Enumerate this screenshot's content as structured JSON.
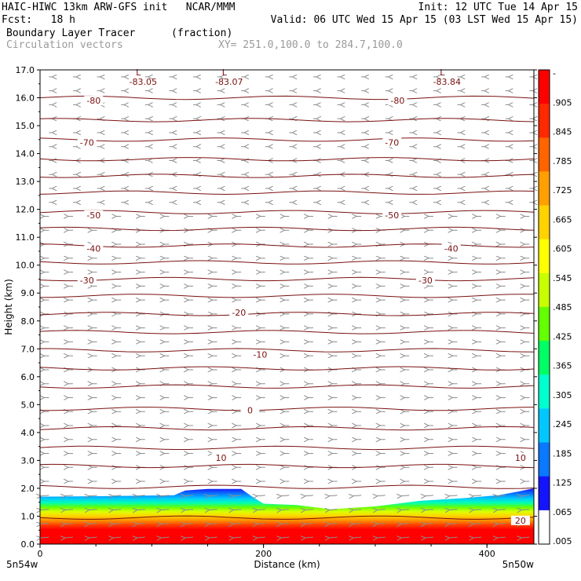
{
  "header": {
    "line1_left": "HAIC-HIWC 13km ARW-GFS init   NCAR/MMM",
    "line1_right": "Init: 12 UTC Tue 14 Apr 15",
    "line2_left": "Fcst:   18 h",
    "line2_right": "Valid: 06 UTC Wed 15 Apr 15 (03 LST Wed 15 Apr 15)",
    "field_name": "Boundary Layer Tracer",
    "field_units": "(fraction)",
    "vectors_label": "Circulation vectors",
    "xy_label": "XY= 251.0,100.0 to 284.7,100.0"
  },
  "colors": {
    "contour": "#7a1010",
    "vector": "#8c8c8c",
    "colorbar": [
      "#ffffff",
      "#1414ff",
      "#0a78ff",
      "#00c8ff",
      "#00ffd0",
      "#00ff64",
      "#64ff00",
      "#c8ff00",
      "#ffff00",
      "#ffd200",
      "#ffa000",
      "#ff6400",
      "#ff2800",
      "#ff0000"
    ]
  },
  "chart_data": {
    "type": "cross-section",
    "xlabel": "Distance (km)",
    "ylabel": "Height (km)",
    "xlim": [
      0,
      442
    ],
    "ylim": [
      0,
      17
    ],
    "x_ticks": [
      "0",
      "200",
      "400"
    ],
    "x_tick_values": [
      0,
      200,
      400
    ],
    "x_endpoint_labels": [
      "5n54w",
      "5n50w"
    ],
    "y_ticks": [
      "0.0",
      "1.0",
      "2.0",
      "3.0",
      "4.0",
      "5.0",
      "6.0",
      "7.0",
      "8.0",
      "9.0",
      "10.0",
      "11.0",
      "12.0",
      "13.0",
      "14.0",
      "15.0",
      "16.0",
      "17.0"
    ],
    "y_tick_values": [
      0,
      1,
      2,
      3,
      4,
      5,
      6,
      7,
      8,
      9,
      10,
      11,
      12,
      13,
      14,
      15,
      16,
      17
    ],
    "colorbar_labels": [
      "-",
      ".905",
      ".845",
      ".785",
      ".725",
      ".665",
      ".605",
      ".545",
      ".485",
      ".425",
      ".365",
      ".305",
      ".245",
      ".185",
      ".125",
      ".065",
      ".005"
    ],
    "low_markers": [
      {
        "x": 88,
        "y": 16.8,
        "symbol": "L",
        "value": "-83.05"
      },
      {
        "x": 165,
        "y": 16.8,
        "symbol": "L",
        "value": "-83.07"
      },
      {
        "x": 360,
        "y": 16.8,
        "symbol": "L",
        "value": "-83.84"
      }
    ],
    "contour_labels": [
      {
        "x": 48,
        "y": 15.9,
        "text": "-80"
      },
      {
        "x": 320,
        "y": 15.9,
        "text": "-80"
      },
      {
        "x": 42,
        "y": 14.4,
        "text": "-70"
      },
      {
        "x": 315,
        "y": 14.4,
        "text": "-70"
      },
      {
        "x": 48,
        "y": 11.8,
        "text": "-50"
      },
      {
        "x": 315,
        "y": 11.8,
        "text": "-50"
      },
      {
        "x": 48,
        "y": 10.6,
        "text": "-40"
      },
      {
        "x": 368,
        "y": 10.6,
        "text": "-40"
      },
      {
        "x": 42,
        "y": 9.45,
        "text": "-30"
      },
      {
        "x": 345,
        "y": 9.45,
        "text": "-30"
      },
      {
        "x": 178,
        "y": 8.3,
        "text": "-20"
      },
      {
        "x": 197,
        "y": 6.8,
        "text": "-10"
      },
      {
        "x": 188,
        "y": 4.8,
        "text": "0"
      },
      {
        "x": 162,
        "y": 3.1,
        "text": "10"
      },
      {
        "x": 430,
        "y": 3.1,
        "text": "10"
      },
      {
        "x": 430,
        "y": 0.85,
        "text": "20"
      }
    ],
    "contour_levels_km": [
      16.0,
      15.2,
      14.5,
      13.8,
      13.2,
      12.6,
      11.9,
      11.3,
      10.7,
      10.1,
      9.5,
      8.9,
      8.25,
      7.6,
      6.95,
      6.3,
      5.65,
      4.85,
      4.15,
      3.45,
      2.8,
      2.05,
      0.95
    ],
    "tracer_top_km": [
      [
        0,
        1.7
      ],
      [
        60,
        1.72
      ],
      [
        120,
        1.75
      ],
      [
        130,
        1.92
      ],
      [
        150,
        1.98
      ],
      [
        180,
        1.98
      ],
      [
        190,
        1.7
      ],
      [
        200,
        1.45
      ],
      [
        230,
        1.4
      ],
      [
        260,
        1.25
      ],
      [
        300,
        1.35
      ],
      [
        340,
        1.55
      ],
      [
        380,
        1.65
      ],
      [
        410,
        1.75
      ],
      [
        430,
        1.9
      ],
      [
        442,
        2.0
      ]
    ]
  }
}
